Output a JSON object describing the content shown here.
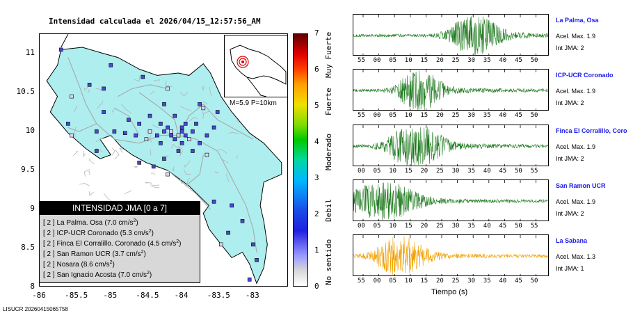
{
  "map": {
    "title": "Intensidad calculada el 2026/04/15_12:57:56_AM",
    "x_ticks": [
      "-86",
      "-85.5",
      "-85",
      "-84.5",
      "-84",
      "-83.5",
      "-83"
    ],
    "y_ticks": [
      "11",
      "10.5",
      "10",
      "9.5",
      "9",
      "8.5",
      "8"
    ],
    "x_range": [
      -86,
      -82.5
    ],
    "y_range": [
      8,
      11.25
    ],
    "land_color": "#aeeeee",
    "station_color": "#4a4ad0",
    "inset": {
      "label": "M=5.9 P=10km",
      "epicenter_color": "#e00000"
    },
    "legend": {
      "header": "INTENSIDAD JMA [0 a 7]",
      "rows": [
        {
          "level": "[ 2 ]",
          "text": "La Palma. Osa (7.0 cm/s",
          "unit_sup": "2",
          "close": ")"
        },
        {
          "level": "[ 2 ]",
          "text": "ICP-UCR Coronado (5.3 cm/s",
          "unit_sup": "2",
          "close": ")"
        },
        {
          "level": "[ 2 ]",
          "text": "Finca El Corralillo. Coronado (4.5 cm/s",
          "unit_sup": "2",
          "close": ")"
        },
        {
          "level": "[ 2 ]",
          "text": "San Ramon UCR (3.7 cm/s",
          "unit_sup": "2",
          "close": ")"
        },
        {
          "level": "[ 2 ]",
          "text": "Nosara (8.6 cm/s",
          "unit_sup": "2",
          "close": ")"
        },
        {
          "level": "[ 2 ]",
          "text": "San Ignacio Acosta (7.0 cm/s",
          "unit_sup": "2",
          "close": ")"
        }
      ]
    }
  },
  "colorbar": {
    "values": [
      "7",
      "6",
      "5",
      "4",
      "3",
      "2",
      "1",
      "0"
    ],
    "words": [
      "Muy Fuerte",
      "Fuerte",
      "Moderado",
      "Debil",
      "No sentido"
    ]
  },
  "traces": [
    {
      "name": "La Palma, Osa",
      "accel": "Acel. Max. 1.9",
      "jma": "Int JMA: 2",
      "color": "#1e7a1e",
      "ticks": [
        "55",
        "00",
        "05",
        "10",
        "15",
        "20",
        "25",
        "30",
        "35",
        "40",
        "45",
        "50"
      ],
      "burst_center": 0.62,
      "burst_width": 0.12,
      "amp": 1.0
    },
    {
      "name": "ICP-UCR Coronado",
      "accel": "Acel. Max. 1.9",
      "jma": "Int JMA: 2",
      "color": "#1e7a1e",
      "ticks": [
        "55",
        "00",
        "05",
        "10",
        "15",
        "20",
        "25",
        "30",
        "35",
        "40",
        "45",
        "50"
      ],
      "burst_center": 0.34,
      "burst_width": 0.1,
      "amp": 1.0
    },
    {
      "name": "Finca El Corralillo, Coro",
      "accel": "Acel. Max. 1.9",
      "jma": "Int JMA: 2",
      "color": "#1e7a1e",
      "ticks": [
        "00",
        "05",
        "10",
        "15",
        "20",
        "25",
        "30",
        "35",
        "40",
        "45",
        "50",
        "55"
      ],
      "burst_center": 0.32,
      "burst_width": 0.14,
      "amp": 1.0
    },
    {
      "name": "San Ramon UCR",
      "accel": "Acel. Max. 1.9",
      "jma": "Int JMA: 2",
      "color": "#1e7a1e",
      "ticks": [
        "00",
        "05",
        "10",
        "15",
        "20",
        "25",
        "30",
        "35",
        "40",
        "45",
        "50",
        "55"
      ],
      "burst_center": 0.16,
      "burst_width": 0.16,
      "amp": 0.95
    },
    {
      "name": "La Sabana",
      "accel": "Acel. Max. 1.3",
      "jma": "Int JMA: 1",
      "color": "#f0a000",
      "ticks": [
        "55",
        "00",
        "05",
        "10",
        "15",
        "20",
        "25",
        "30",
        "35",
        "40",
        "45",
        "50"
      ],
      "burst_center": 0.24,
      "burst_width": 0.12,
      "amp": 0.95
    }
  ],
  "x_axis_label": "Tiempo (s)",
  "footer": "LISUCR 20260415065758"
}
